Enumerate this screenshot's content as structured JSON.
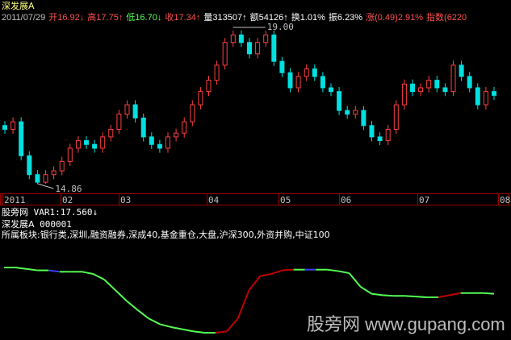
{
  "stock": {
    "name": "深发展A",
    "code": "000001"
  },
  "quote": {
    "date": "2011/07/29",
    "open_label": "开",
    "open": "16.92",
    "high_label": "高",
    "high": "17.75",
    "low_label": "低",
    "low": "16.70",
    "close_label": "收",
    "close": "17.34",
    "vol_label": "量",
    "vol": "313507",
    "amt_label": "额",
    "amt": "54126",
    "turn_label": "换",
    "turn": "1.01%",
    "amp_label": "振",
    "amp": "6.23%",
    "chg_label": "涨",
    "chg": "(0.49)2.91%",
    "idx_label": "指数",
    "idx": "(6220"
  },
  "annotations": {
    "max": "19.00",
    "min": "14.86"
  },
  "months": [
    "2011",
    "02",
    "03",
    "04",
    "05",
    "06",
    "07",
    "08"
  ],
  "indicator": {
    "title": "股旁网",
    "var": "VAR1:17.560",
    "arrow": "↓"
  },
  "sectors": "所属板块:银行类,深圳,融资融券,深成40,基金重仓,大盘,沪深300,外资并购,中证100",
  "watermark": "股旁网 www.gupang.com",
  "colors": {
    "up": "#ff4040",
    "down": "#00e0e0",
    "green": "#54ff54",
    "red": "#c00000",
    "blue": "#4040ff",
    "yellow": "#ffff80"
  },
  "chart_data": {
    "type": "candlestick",
    "ylim": [
      14.86,
      19.0
    ],
    "close": [
      16.3,
      16.5,
      15.6,
      15.1,
      14.9,
      15.1,
      15.2,
      15.45,
      15.8,
      16.0,
      15.9,
      15.8,
      16.1,
      16.3,
      16.7,
      16.95,
      16.6,
      16.1,
      15.9,
      15.8,
      16.1,
      16.2,
      16.5,
      16.95,
      17.3,
      17.6,
      18.0,
      18.6,
      18.8,
      18.6,
      18.3,
      18.6,
      18.8,
      18.1,
      17.8,
      17.4,
      17.7,
      17.9,
      17.7,
      17.4,
      17.3,
      16.8,
      16.7,
      16.8,
      16.4,
      16.1,
      16.0,
      16.3,
      16.95,
      17.5,
      17.3,
      17.4,
      17.6,
      17.4,
      17.3,
      18.0,
      17.7,
      17.4,
      16.95,
      17.3,
      17.2
    ],
    "indicator_levels": [
      0.92,
      0.92,
      0.9,
      0.88,
      0.88,
      0.86,
      0.86,
      0.86,
      0.83,
      0.75,
      0.6,
      0.45,
      0.32,
      0.2,
      0.12,
      0.08,
      0.05,
      0.02,
      0.0,
      0.0,
      0.02,
      0.2,
      0.6,
      0.8,
      0.83,
      0.88,
      0.89,
      0.89,
      0.89,
      0.89,
      0.87,
      0.84,
      0.65,
      0.55,
      0.53,
      0.52,
      0.52,
      0.51,
      0.5,
      0.5,
      0.53,
      0.56,
      0.56,
      0.56,
      0.55
    ]
  }
}
